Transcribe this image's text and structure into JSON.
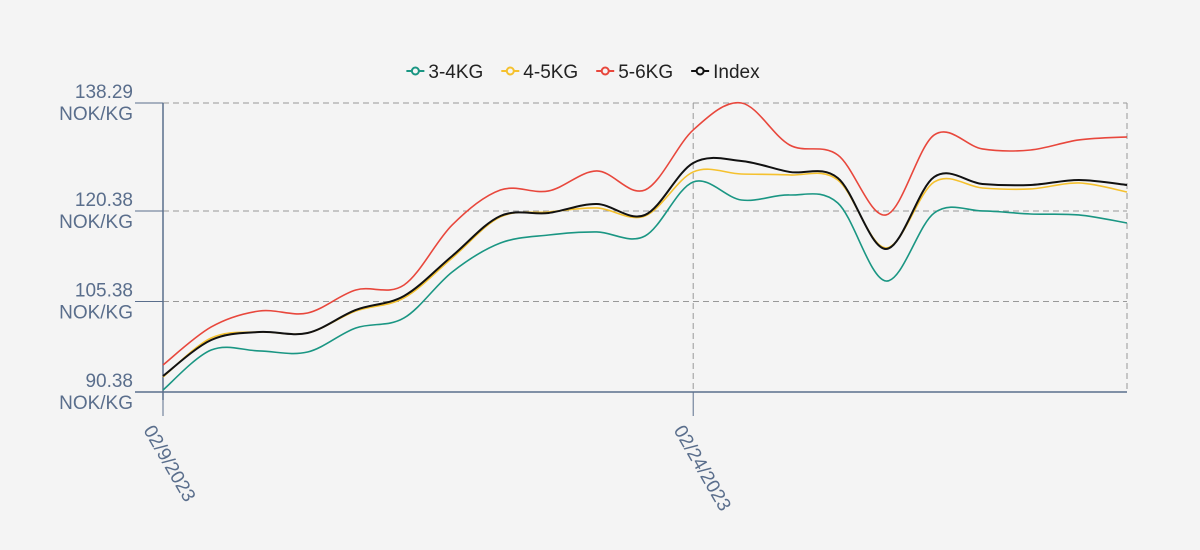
{
  "chart_data": {
    "type": "line",
    "categories": [
      "02/9/2023",
      null,
      null,
      null,
      null,
      null,
      null,
      null,
      null,
      null,
      null,
      "02/24/2023",
      null,
      null,
      null,
      null,
      null,
      null,
      null,
      null,
      null
    ],
    "series": [
      {
        "name": "3-4KG",
        "color": "#1a9683",
        "values": [
          90.71,
          97.34,
          97.18,
          97.01,
          100.99,
          102.65,
          110.28,
          115.08,
          116.41,
          116.91,
          116.24,
          125.2,
          122.21,
          123.04,
          121.71,
          108.78,
          120.06,
          120.39,
          119.89,
          119.73,
          118.4
        ]
      },
      {
        "name": "4-5KG",
        "color": "#f5c12e",
        "values": [
          92.87,
          99.33,
          100.33,
          100.16,
          103.81,
          105.97,
          112.6,
          119.4,
          120.22,
          120.89,
          119.56,
          126.86,
          126.52,
          126.36,
          125.53,
          114.26,
          125.2,
          124.2,
          124.04,
          125.03,
          123.54
        ]
      },
      {
        "name": "5-6KG",
        "color": "#e8473c",
        "values": [
          94.86,
          101.16,
          103.81,
          103.48,
          107.29,
          108.12,
          118.07,
          123.87,
          123.71,
          127.02,
          123.87,
          133.82,
          138.29,
          131.33,
          129.67,
          119.73,
          133.0,
          130.67,
          130.5,
          132.16,
          132.66
        ]
      },
      {
        "name": "Index",
        "color": "#111111",
        "values": [
          93.03,
          99.0,
          100.33,
          100.16,
          103.98,
          106.3,
          112.93,
          119.56,
          120.06,
          121.55,
          119.73,
          128.35,
          128.68,
          126.86,
          125.86,
          114.09,
          126.03,
          124.87,
          124.7,
          125.53,
          124.7
        ]
      }
    ],
    "ylim": [
      90.38,
      138.29
    ],
    "yticks": [
      {
        "value": 90.38,
        "label": "90.38 NOK/KG"
      },
      {
        "value": 105.38,
        "label": "105.38 NOK/KG"
      },
      {
        "value": 120.38,
        "label": "120.38 NOK/KG"
      },
      {
        "value": 138.29,
        "label": "138.29 NOK/KG"
      }
    ],
    "grid": true,
    "legend": "top"
  }
}
